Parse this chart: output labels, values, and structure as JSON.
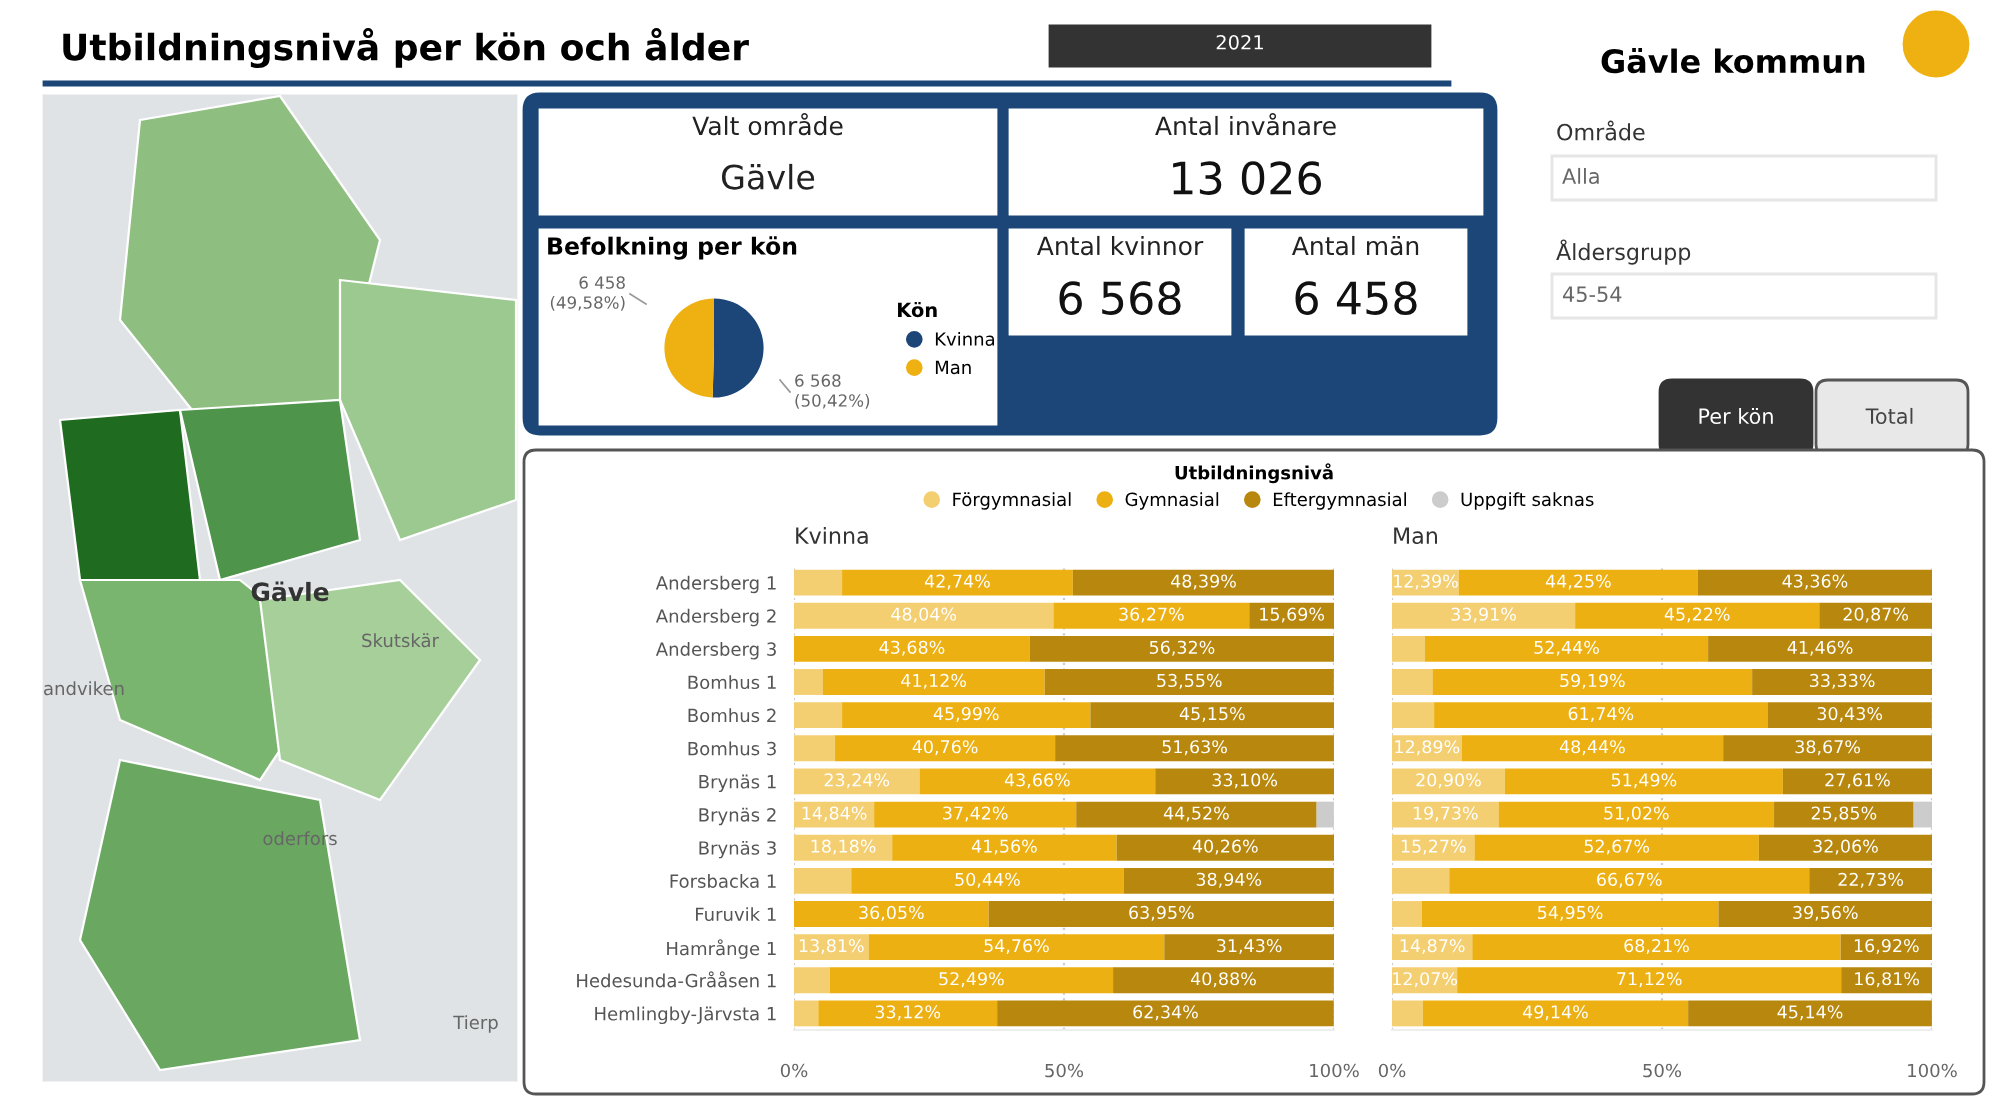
{
  "chart_data": [
    {
      "type": "other",
      "title": "Utbildningsnivå per kön och ålder",
      "annotations": [
        "2021",
        "Gävle kommun",
        "Område",
        "Alla",
        "Åldersgrupp",
        "45-54",
        "Per kön",
        "Total",
        "Valt område",
        "Gävle",
        "Antal invånare",
        "13 026",
        "Antal kvinnor",
        "6 568",
        "Antal män",
        "6 458",
        "Gävle",
        "andviken",
        "Skutskär",
        "Tierp",
        "oderfors"
      ]
    },
    {
      "type": "pie",
      "title": "Befolkning per kön",
      "legend_title": "Kön",
      "legend": "right",
      "categories": [
        "Kvinna",
        "Man"
      ],
      "values": [
        6568,
        6458
      ],
      "colors": [
        "#1b4677",
        "#eeb111"
      ],
      "value_labels": [
        "6 568\n(50,42%)",
        "6 458\n(49,58%)"
      ]
    },
    {
      "type": "bar",
      "orientation": "horizontal",
      "stacked": true,
      "title": "Kvinna",
      "legend_title": "Utbildningsnivå",
      "legend": "top",
      "grid": "x",
      "xlim": [
        0,
        100
      ],
      "xticks": [
        {
          "value": 0,
          "label": "0%"
        },
        {
          "value": 50,
          "label": "50%"
        },
        {
          "value": 100,
          "label": "100%"
        }
      ],
      "categories": [
        "Andersberg 1",
        "Andersberg 2",
        "Andersberg 3",
        "Bomhus 1",
        "Bomhus 2",
        "Bomhus 3",
        "Brynäs 1",
        "Brynäs 2",
        "Brynäs 3",
        "Forsbacka 1",
        "Furuvik 1",
        "Hamrånge 1",
        "Hedesunda-Grååsen 1",
        "Hemlingby-Järvsta 1"
      ],
      "series": [
        {
          "name": "Förgymnasial",
          "color": "#f4cf72",
          "values": [
            8.9,
            48.04,
            0,
            5.3,
            8.9,
            7.6,
            23.24,
            14.84,
            18.18,
            10.6,
            0,
            13.81,
            6.6,
            4.5
          ],
          "value_labels": [
            null,
            "48,04%",
            null,
            null,
            null,
            null,
            "23,24%",
            "14,84%",
            "18,18%",
            null,
            null,
            "13,81%",
            null,
            null
          ]
        },
        {
          "name": "Gymnasial",
          "color": "#edb012",
          "values": [
            42.74,
            36.27,
            43.68,
            41.12,
            45.99,
            40.76,
            43.66,
            37.42,
            41.56,
            50.44,
            36.05,
            54.76,
            52.49,
            33.12
          ],
          "value_labels": [
            "42,74%",
            "36,27%",
            "43,68%",
            "41,12%",
            "45,99%",
            "40,76%",
            "43,66%",
            "37,42%",
            "41,56%",
            "50,44%",
            "36,05%",
            "54,76%",
            "52,49%",
            "33,12%"
          ]
        },
        {
          "name": "Eftergymnasial",
          "color": "#b8870d",
          "values": [
            48.39,
            15.69,
            56.32,
            53.55,
            45.15,
            51.63,
            33.1,
            44.52,
            40.26,
            38.94,
            63.95,
            31.43,
            40.88,
            62.34
          ],
          "value_labels": [
            "48,39%",
            "15,69%",
            "56,32%",
            "53,55%",
            "45,15%",
            "51,63%",
            "33,10%",
            "44,52%",
            "40,26%",
            "38,94%",
            "63,95%",
            "31,43%",
            "40,88%",
            "62,34%"
          ]
        },
        {
          "name": "Uppgift saknas",
          "color": "#cccccc",
          "values": [
            0,
            0,
            0,
            0,
            0,
            0,
            0,
            3.2,
            0,
            0,
            0,
            0,
            0,
            0
          ],
          "value_labels": [
            null,
            null,
            null,
            null,
            null,
            null,
            null,
            null,
            null,
            null,
            null,
            null,
            null,
            null
          ]
        }
      ]
    },
    {
      "type": "bar",
      "orientation": "horizontal",
      "stacked": true,
      "title": "Man",
      "grid": "x",
      "tick_labels": "x",
      "xlim": [
        0,
        100
      ],
      "xticks": [
        {
          "value": 0,
          "label": "0%"
        },
        {
          "value": 50,
          "label": "50%"
        },
        {
          "value": 100,
          "label": "100%"
        }
      ],
      "categories": [
        null,
        null,
        null,
        null,
        null,
        null,
        null,
        null,
        null,
        null,
        null,
        null,
        null,
        null
      ],
      "series": [
        {
          "color": "#f4cf72",
          "values": [
            12.39,
            33.91,
            6.1,
            7.5,
            7.8,
            12.89,
            20.9,
            19.73,
            15.27,
            10.6,
            5.5,
            14.87,
            12.07,
            5.7
          ],
          "value_labels": [
            "12,39%",
            "33,91%",
            null,
            null,
            null,
            "12,89%",
            "20,90%",
            "19,73%",
            "15,27%",
            null,
            null,
            "14,87%",
            "12,07%",
            null
          ]
        },
        {
          "color": "#edb012",
          "values": [
            44.25,
            45.22,
            52.44,
            59.19,
            61.74,
            48.44,
            51.49,
            51.02,
            52.67,
            66.67,
            54.95,
            68.21,
            71.12,
            49.14
          ],
          "value_labels": [
            "44,25%",
            "45,22%",
            "52,44%",
            "59,19%",
            "61,74%",
            "48,44%",
            "51,49%",
            "51,02%",
            "52,67%",
            "66,67%",
            "54,95%",
            "68,21%",
            "71,12%",
            "49,14%"
          ]
        },
        {
          "color": "#b8870d",
          "values": [
            43.36,
            20.87,
            41.46,
            33.33,
            30.43,
            38.67,
            27.61,
            25.85,
            32.06,
            22.73,
            39.56,
            16.92,
            16.81,
            45.14
          ],
          "value_labels": [
            "43,36%",
            "20,87%",
            "41,46%",
            "33,33%",
            "30,43%",
            "38,67%",
            "27,61%",
            "25,85%",
            "32,06%",
            "22,73%",
            "39,56%",
            "16,92%",
            "16,81%",
            "45,14%"
          ]
        },
        {
          "color": "#cccccc",
          "values": [
            0,
            0,
            0,
            0,
            0,
            0,
            0,
            3.4,
            0,
            0,
            0,
            0,
            0,
            0
          ],
          "value_labels": [
            null,
            null,
            null,
            null,
            null,
            null,
            null,
            null,
            null,
            null,
            null,
            null,
            null,
            null
          ]
        }
      ]
    }
  ]
}
